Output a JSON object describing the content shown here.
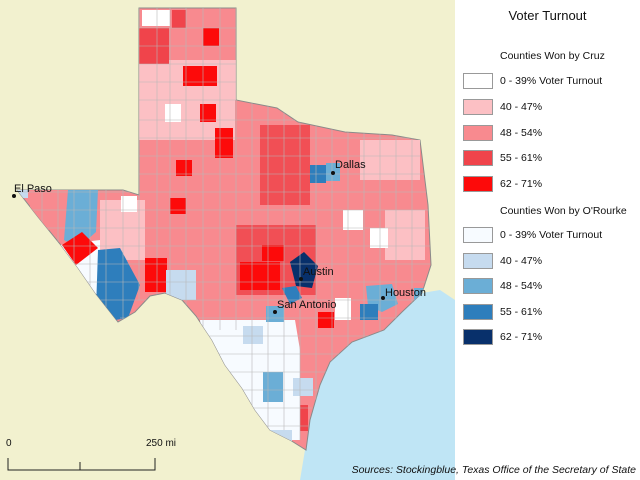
{
  "legend": {
    "title": "Voter Turnout",
    "cruz_title": "Counties Won by Cruz",
    "orourke_title": "Counties Won by O'Rourke",
    "cruz": [
      {
        "label": "0 - 39% Voter Turnout",
        "color": "#ffffff"
      },
      {
        "label": "40 - 47%",
        "color": "#fcc0c4"
      },
      {
        "label": "48 - 54%",
        "color": "#f88a8f"
      },
      {
        "label": "55 - 61%",
        "color": "#f0444b"
      },
      {
        "label": "62 - 71%",
        "color": "#fd0a0a"
      }
    ],
    "orourke": [
      {
        "label": "0 - 39% Voter Turnout",
        "color": "#f7fbff"
      },
      {
        "label": "40 - 47%",
        "color": "#c6dbef"
      },
      {
        "label": "48 - 54%",
        "color": "#6baed6"
      },
      {
        "label": "55 - 61%",
        "color": "#2e7ebc"
      },
      {
        "label": "62 - 71%",
        "color": "#08306b"
      }
    ]
  },
  "cities": {
    "el_paso": "El Paso",
    "dallas": "Dallas",
    "austin": "Austin",
    "san_antonio": "San Antonio",
    "houston": "Houston"
  },
  "scale": {
    "start": "0",
    "end": "250 mi"
  },
  "source": "Sources: Stockingblue, Texas Office of the Secretary of State",
  "colors": {
    "background": "#f2f1cf",
    "water": "#bfe5f5",
    "county_border": "#b8b8b8"
  }
}
